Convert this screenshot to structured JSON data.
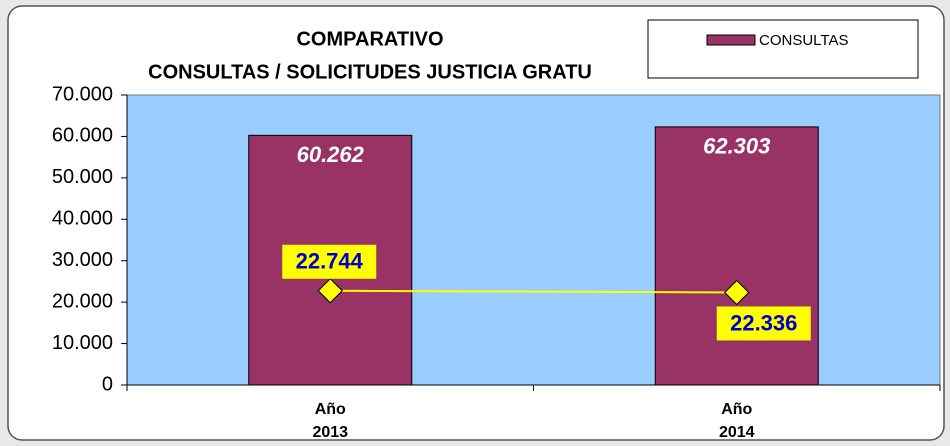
{
  "chart_data": {
    "type": "bar",
    "title": "COMPARATIVO",
    "subtitle": "CONSULTAS / SOLICITUDES JUSTICIA GRATU",
    "categories": [
      "Año 2013",
      "Año 2014"
    ],
    "series": [
      {
        "name": "CONSULTAS",
        "type": "bar",
        "color": "#993366",
        "values": [
          60262,
          62303
        ],
        "value_labels": [
          "60.262",
          "62.303"
        ]
      },
      {
        "type": "line",
        "color": "#ffff00",
        "values": [
          22744,
          22336
        ],
        "value_labels": [
          "22.744",
          "22.336"
        ]
      }
    ],
    "ylim": [
      0,
      70000
    ],
    "yticks": [
      0,
      {
        "value": 10000,
        "label": "10.000"
      },
      {
        "value": 20000,
        "label": "20.000"
      },
      {
        "value": 30000,
        "label": "30.000"
      },
      {
        "value": 40000,
        "label": "40.000"
      },
      {
        "value": 50000,
        "label": "50.000"
      },
      {
        "value": 60000,
        "label": "60.000"
      },
      {
        "value": 70000,
        "label": "70.000"
      }
    ],
    "plot_background": "#99ccff",
    "legend": "top-right"
  }
}
